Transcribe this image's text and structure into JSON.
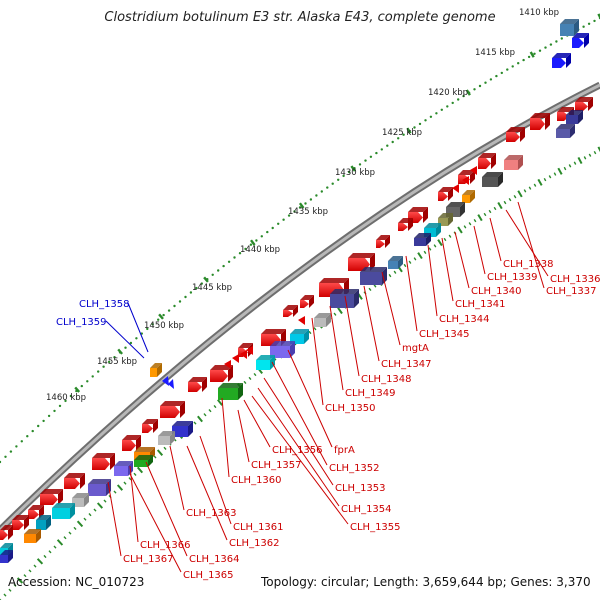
{
  "title": "Clostridium botulinum E3 str. Alaska E43, complete genome",
  "footer": {
    "accession": "Accession: NC_010723",
    "topology": "Topology: circular; Length: 3,659,644 bp; Genes: 3,370"
  },
  "colors": {
    "forward_gene": "#ee1111",
    "reverse_gene_label": "#cc0000",
    "forward_gene_label": "#0000cc",
    "ruler_dots": "#2a8a2a",
    "backbone": "#8a8a8a",
    "tick_marks": "#2a8a2a"
  },
  "ruler_labels": [
    "1410 kbp",
    "1415 kbp",
    "1420 kbp",
    "1425 kbp",
    "1430 kbp",
    "1435 kbp",
    "1440 kbp",
    "1445 kbp",
    "1450 kbp",
    "1455 kbp",
    "1460 kbp"
  ],
  "forward_gene_labels": [
    "CLH_1358",
    "CLH_1359"
  ],
  "reverse_gene_labels": [
    "CLH_1338",
    "CLH_1336",
    "CLH_1339",
    "CLH_1337",
    "CLH_1340",
    "CLH_1341",
    "CLH_1344",
    "CLH_1345",
    "mgtA",
    "CLH_1347",
    "CLH_1348",
    "CLH_1349",
    "CLH_1350",
    "fprA",
    "CLH_1352",
    "CLH_1353",
    "CLH_1354",
    "CLH_1355",
    "CLH_1356",
    "CLH_1357",
    "CLH_1360",
    "CLH_1363",
    "CLH_1361",
    "CLH_1362",
    "CLH_1366",
    "CLH_1364",
    "CLH_1367",
    "CLH_1365"
  ]
}
